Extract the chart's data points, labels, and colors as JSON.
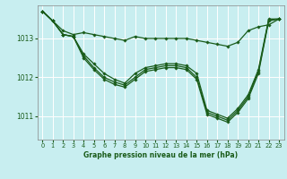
{
  "title": "Graphe pression niveau de la mer (hPa)",
  "bg_color": "#c8eef0",
  "grid_color": "#ffffff",
  "line_color": "#1a5c1a",
  "xlim": [
    -0.5,
    23.5
  ],
  "ylim": [
    1010.4,
    1013.85
  ],
  "yticks": [
    1011,
    1012,
    1013
  ],
  "xticks": [
    0,
    1,
    2,
    3,
    4,
    5,
    6,
    7,
    8,
    9,
    10,
    11,
    12,
    13,
    14,
    15,
    16,
    17,
    18,
    19,
    20,
    21,
    22,
    23
  ],
  "series": [
    [
      1013.7,
      1013.45,
      1013.2,
      1013.1,
      1013.15,
      1013.1,
      1013.05,
      1013.0,
      1012.95,
      1013.05,
      1013.0,
      1013.0,
      1013.0,
      1013.0,
      1013.0,
      1012.95,
      1012.9,
      1012.85,
      1012.8,
      1012.9,
      1013.2,
      1013.3,
      1013.35,
      1013.5
    ],
    [
      1013.7,
      1013.45,
      1013.1,
      1013.05,
      1012.6,
      1012.35,
      1012.1,
      1011.95,
      1011.85,
      1012.1,
      1012.25,
      1012.3,
      1012.35,
      1012.35,
      1012.3,
      1012.1,
      1011.15,
      1011.05,
      1010.95,
      1011.2,
      1011.55,
      1012.2,
      1013.5,
      1013.5
    ],
    [
      1013.7,
      1013.45,
      1013.1,
      1013.05,
      1012.55,
      1012.25,
      1012.0,
      1011.88,
      1011.8,
      1012.0,
      1012.2,
      1012.25,
      1012.3,
      1012.3,
      1012.25,
      1012.0,
      1011.1,
      1011.0,
      1010.9,
      1011.15,
      1011.5,
      1012.15,
      1013.48,
      1013.5
    ],
    [
      1013.7,
      1013.45,
      1013.1,
      1013.05,
      1012.5,
      1012.2,
      1011.95,
      1011.82,
      1011.75,
      1011.95,
      1012.15,
      1012.2,
      1012.25,
      1012.25,
      1012.2,
      1011.95,
      1011.05,
      1010.95,
      1010.85,
      1011.1,
      1011.45,
      1012.1,
      1013.45,
      1013.5
    ]
  ]
}
